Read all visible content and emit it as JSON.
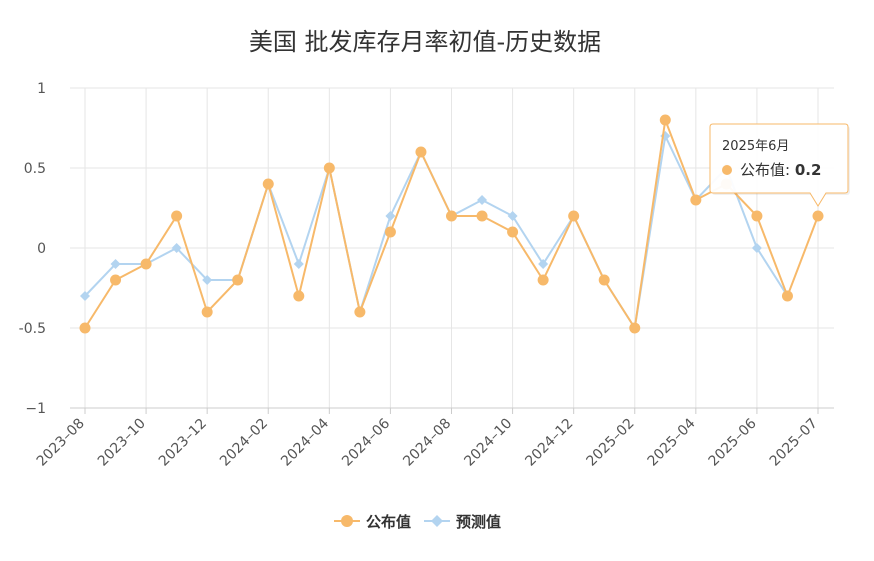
{
  "chart_data": {
    "type": "line",
    "title": "美国 批发库存月率初值-历史数据",
    "ylim": [
      -1,
      1
    ],
    "yticks": [
      1,
      0.5,
      0,
      -0.5,
      -1
    ],
    "ytick_labels": [
      "1",
      "0.5",
      "0",
      "-0.5",
      "−1"
    ],
    "x": [
      "2023-08",
      "2023-09",
      "2023-10",
      "2023-11",
      "2023-12",
      "2024-01",
      "2024-02",
      "2024-03",
      "2024-04",
      "2024-05",
      "2024-06",
      "2024-07",
      "2024-08",
      "2024-09",
      "2024-10",
      "2024-11",
      "2024-12",
      "2025-01",
      "2025-02",
      "2025-03",
      "2025-04",
      "2025-05",
      "2025-06",
      "2025-06b",
      "2025-07"
    ],
    "xticks": [
      "2023–08",
      "2023–10",
      "2023–12",
      "2024–02",
      "2024–04",
      "2024–06",
      "2024–08",
      "2024–10",
      "2024–12",
      "2025–02",
      "2025–04",
      "2025–06",
      "2025–07"
    ],
    "series": [
      {
        "name": "公布值",
        "color": "#f7b96a",
        "marker": "circle",
        "values": [
          -0.5,
          -0.2,
          -0.1,
          0.2,
          -0.4,
          -0.2,
          0.4,
          -0.3,
          0.5,
          -0.4,
          0.1,
          0.6,
          0.2,
          0.2,
          0.1,
          -0.2,
          0.2,
          -0.2,
          -0.5,
          0.8,
          0.3,
          0.4,
          0.2,
          -0.3,
          0.2
        ]
      },
      {
        "name": "预测值",
        "color": "#b3d4f0",
        "marker": "diamond",
        "values": [
          -0.3,
          -0.1,
          -0.1,
          0.0,
          -0.2,
          -0.2,
          0.4,
          -0.1,
          0.5,
          -0.4,
          0.2,
          0.6,
          0.2,
          0.3,
          0.2,
          -0.1,
          0.2,
          -0.2,
          -0.5,
          0.7,
          0.3,
          0.5,
          0.0,
          -0.3,
          null
        ]
      }
    ],
    "legend_position": "bottom",
    "grid": true,
    "tooltip": {
      "title": "2025年6月",
      "label": "公布值",
      "value": "0.2"
    }
  }
}
